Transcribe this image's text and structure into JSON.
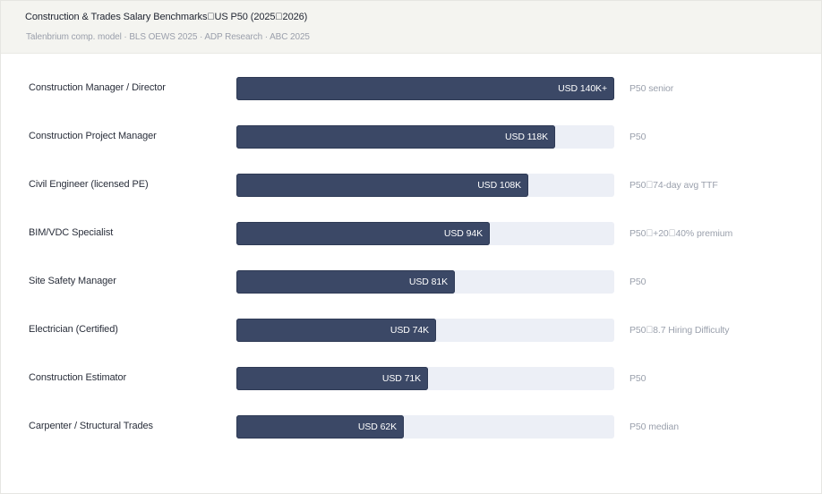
{
  "header": {
    "title": "Construction & Trades Salary Benchmarks\u0000US P50 (2025\u00002026)",
    "subtitle": "Talenbrium comp. model · BLS OEWS 2025 · ADP Research · ABC 2025"
  },
  "chart_data": {
    "type": "bar",
    "orientation": "horizontal",
    "title": "Construction & Trades Salary Benchmarks\u0000US P50 (2025\u00002026)",
    "xlabel": "",
    "ylabel": "",
    "unit": "USD K",
    "xlim": [
      0,
      140
    ],
    "grid": false,
    "categories": [
      "Construction Manager / Director",
      "Construction Project Manager",
      "Civil Engineer (licensed PE)",
      "BIM/VDC Specialist",
      "Site Safety Manager",
      "Electrician (Certified)",
      "Construction Estimator",
      "Carpenter / Structural Trades"
    ],
    "values": [
      140,
      118,
      108,
      94,
      81,
      74,
      71,
      62
    ],
    "value_labels": [
      "USD 140K+",
      "USD 118K",
      "USD 108K",
      "USD 94K",
      "USD 81K",
      "USD 74K",
      "USD 71K",
      "USD 62K"
    ],
    "annotations": [
      "P50 senior",
      "P50",
      "P50\u000074-day avg TTF",
      "P50\u0000+20\u000040% premium",
      "P50",
      "P50\u00008.7 Hiring Difficulty",
      "P50",
      "P50 median"
    ]
  },
  "colors": {
    "bar": "#3b4866",
    "track": "#eceff6",
    "header_bg": "#f4f4f0"
  }
}
